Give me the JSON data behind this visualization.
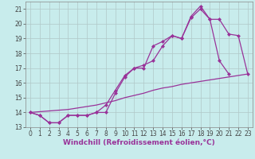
{
  "xlabel": "Windchill (Refroidissement éolien,°C)",
  "bg_color": "#c8ecec",
  "grid_color": "#b0c8c8",
  "line_color": "#993399",
  "xlim": [
    -0.5,
    23.5
  ],
  "ylim": [
    13.0,
    21.5
  ],
  "xticks": [
    0,
    1,
    2,
    3,
    4,
    5,
    6,
    7,
    8,
    9,
    10,
    11,
    12,
    13,
    14,
    15,
    16,
    17,
    18,
    19,
    20,
    21,
    22,
    23
  ],
  "yticks": [
    13,
    14,
    15,
    16,
    17,
    18,
    19,
    20,
    21
  ],
  "line1_x": [
    0,
    1,
    2,
    3,
    4,
    5,
    6,
    7,
    8,
    9,
    10,
    11,
    12,
    13,
    14,
    15,
    16,
    17,
    18,
    19,
    20,
    21
  ],
  "line1_y": [
    14.0,
    13.8,
    13.3,
    13.3,
    13.8,
    13.8,
    13.8,
    14.0,
    14.5,
    15.5,
    16.5,
    17.0,
    17.2,
    17.5,
    18.5,
    19.2,
    19.0,
    20.5,
    21.2,
    20.3,
    17.5,
    16.6
  ],
  "line2_x": [
    0,
    1,
    2,
    3,
    4,
    5,
    6,
    7,
    8,
    9,
    10,
    11,
    12,
    13,
    14,
    15,
    16,
    17,
    18,
    19,
    20,
    21,
    22,
    23
  ],
  "line2_y": [
    14.0,
    13.8,
    13.3,
    13.3,
    13.8,
    13.8,
    13.8,
    14.0,
    14.0,
    15.3,
    16.4,
    17.0,
    17.0,
    18.5,
    18.8,
    19.2,
    19.0,
    20.4,
    21.0,
    20.3,
    20.3,
    19.3,
    19.2,
    16.6
  ],
  "line3_x": [
    0,
    1,
    2,
    3,
    4,
    5,
    6,
    7,
    8,
    9,
    10,
    11,
    12,
    13,
    14,
    15,
    16,
    17,
    18,
    19,
    20,
    21,
    22,
    23
  ],
  "line3_y": [
    14.0,
    14.05,
    14.1,
    14.15,
    14.2,
    14.3,
    14.4,
    14.5,
    14.65,
    14.8,
    15.0,
    15.15,
    15.3,
    15.5,
    15.65,
    15.75,
    15.9,
    16.0,
    16.1,
    16.2,
    16.3,
    16.4,
    16.5,
    16.6
  ],
  "marker": "D",
  "markersize": 2.5,
  "linewidth": 0.9,
  "xlabel_fontsize": 6.5,
  "tick_fontsize": 5.5
}
